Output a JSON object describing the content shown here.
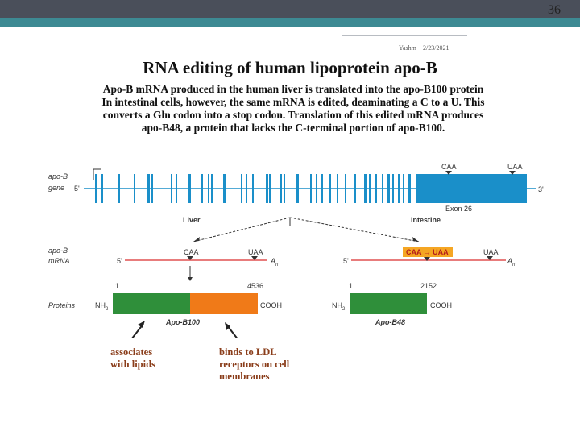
{
  "slide": {
    "page_number": "36",
    "author": "Yashm",
    "date": "2/23/2021",
    "title": "RNA editing of human lipoprotein apo-B",
    "description_lines": [
      "Apo-B mRNA produced in the human liver is translated into the apo-B100 protein",
      "In intestinal cells, however, the same mRNA is edited, deaminating a C to a U. This",
      "converts a Gln codon into a stop codon. Translation of this edited mRNA produces",
      "apo-B48, a protein that lacks the C-terminal portion of apo-B100."
    ]
  },
  "diagram": {
    "gene_label_1": "apo-B",
    "gene_label_2": "gene",
    "gene_5prime": "5'",
    "gene_3prime": "3'",
    "gene_caa": "CAA",
    "gene_uaa": "UAA",
    "exon_label": "Exon 26",
    "liver_label": "Liver",
    "intestine_label": "Intestine",
    "mrna_label_1": "apo-B",
    "mrna_label_2": "mRNA",
    "liver_mrna": {
      "five": "5'",
      "caa": "CAA",
      "uaa": "UAA",
      "polyA": "A",
      "polyA_sub": "n"
    },
    "intestine_mrna": {
      "five": "5'",
      "edited": "CAA → UAA",
      "uaa": "UAA",
      "polyA": "A",
      "polyA_sub": "n"
    },
    "proteins_label": "Proteins",
    "b100": {
      "start": "1",
      "end": "4536",
      "nh2": "NH",
      "nh2_sub": "2",
      "cooh": "COOH",
      "name": "Apo-B100"
    },
    "b48": {
      "start": "1",
      "end": "2152",
      "nh2": "NH",
      "nh2_sub": "2",
      "cooh": "COOH",
      "name": "Apo-B48"
    },
    "colors": {
      "gene": "#1a8fc9",
      "b48_green": "#2f8f3a",
      "b100_orange": "#f07a18",
      "edit_highlight": "#f5a623",
      "mrna_line": "#e05050"
    }
  },
  "notes": {
    "left_line1": "associates",
    "left_line2": "with lipids",
    "right_line1": "binds to LDL",
    "right_line2": "receptors on cell",
    "right_line3": "membranes"
  }
}
